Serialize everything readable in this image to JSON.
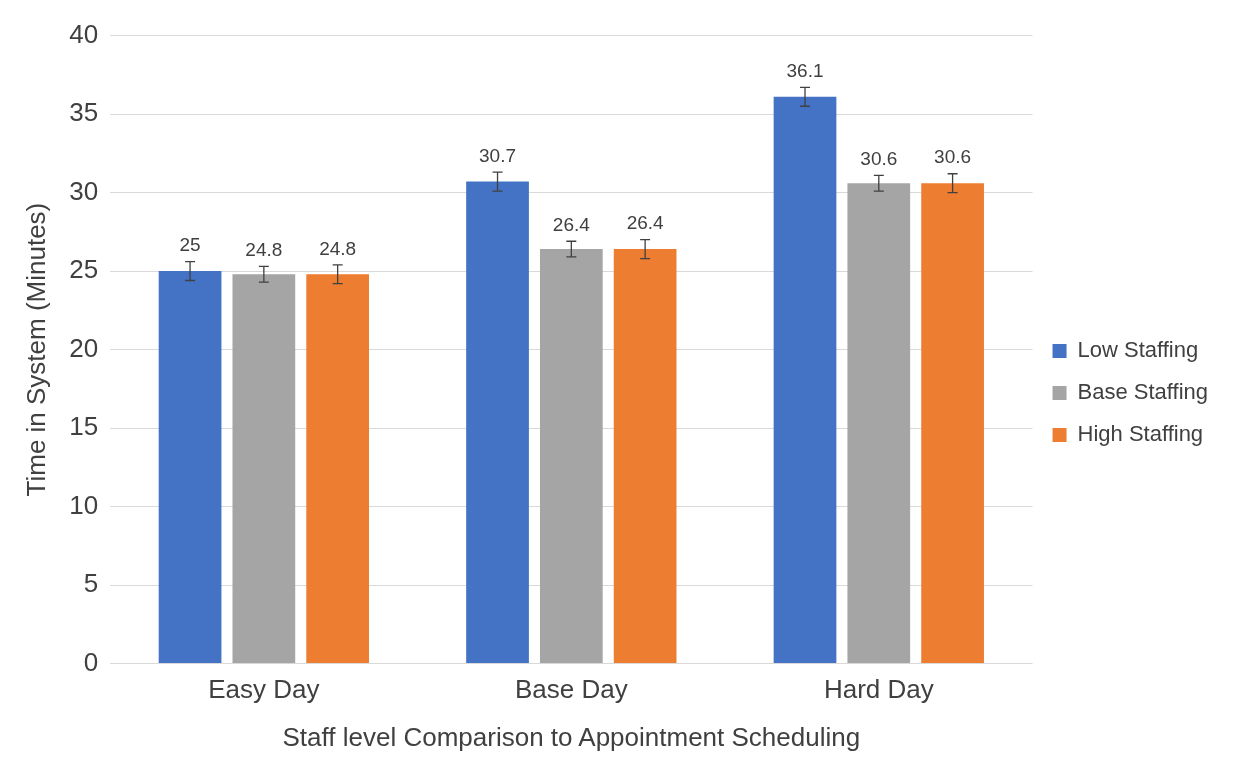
{
  "chart_data": {
    "type": "bar",
    "xlabel": "Staff level Comparison to Appointment Scheduling",
    "ylabel": "Time in System (Minutes)",
    "categories": [
      "Easy Day",
      "Base Day",
      "Hard Day"
    ],
    "series": [
      {
        "name": "Low Staffing",
        "color": "#4472c4",
        "values": [
          25,
          30.7,
          36.1
        ],
        "errors": [
          0.6,
          0.6,
          0.6
        ]
      },
      {
        "name": "Base Staffing",
        "color": "#a5a5a5",
        "values": [
          24.8,
          26.4,
          30.6
        ],
        "errors": [
          0.5,
          0.5,
          0.5
        ]
      },
      {
        "name": "High Staffing",
        "color": "#ed7d31",
        "values": [
          24.8,
          26.4,
          30.6
        ],
        "errors": [
          0.6,
          0.6,
          0.6
        ]
      }
    ],
    "ylim": [
      0,
      40
    ],
    "yticks": [
      0,
      5,
      10,
      15,
      20,
      25,
      30,
      35,
      40
    ],
    "grid": "y",
    "legend": "right",
    "data_labels": true
  }
}
